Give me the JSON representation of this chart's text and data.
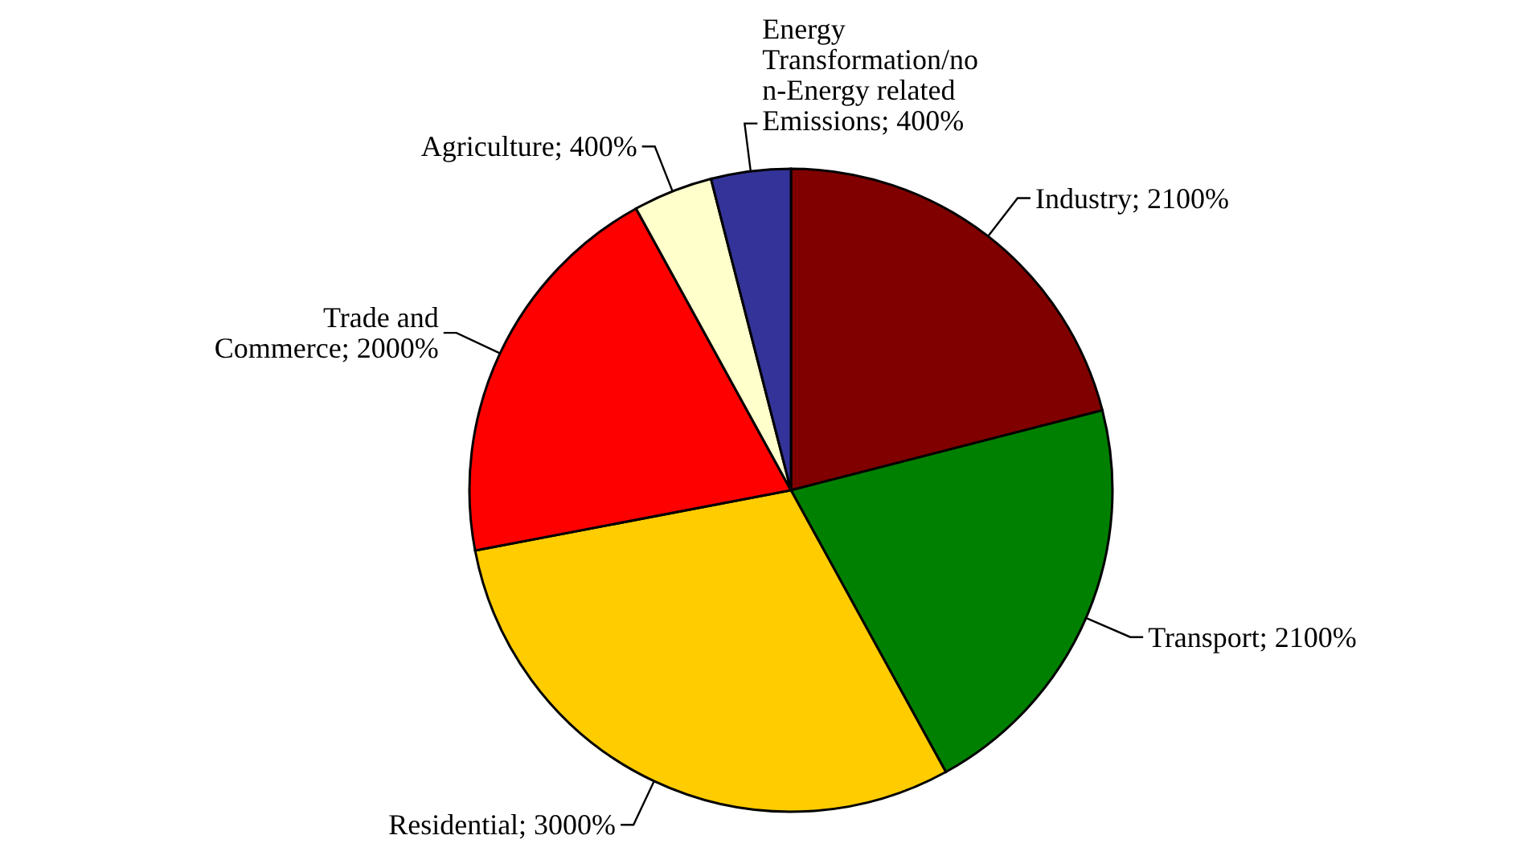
{
  "chart_data": {
    "type": "pie",
    "categories": [
      "Industry",
      "Transport",
      "Residential",
      "Trade and Commerce",
      "Agriculture",
      "Energy Transformation/non-Energy related Emissions"
    ],
    "values": [
      2100,
      2100,
      3000,
      2000,
      400,
      400
    ],
    "value_labels": [
      "2100%",
      "2100%",
      "3000%",
      "2000%",
      "400%",
      "400%"
    ],
    "colors": [
      "#800000",
      "#008000",
      "#ffcc00",
      "#ff0000",
      "#ffffcc",
      "#333399"
    ],
    "legend": false
  }
}
